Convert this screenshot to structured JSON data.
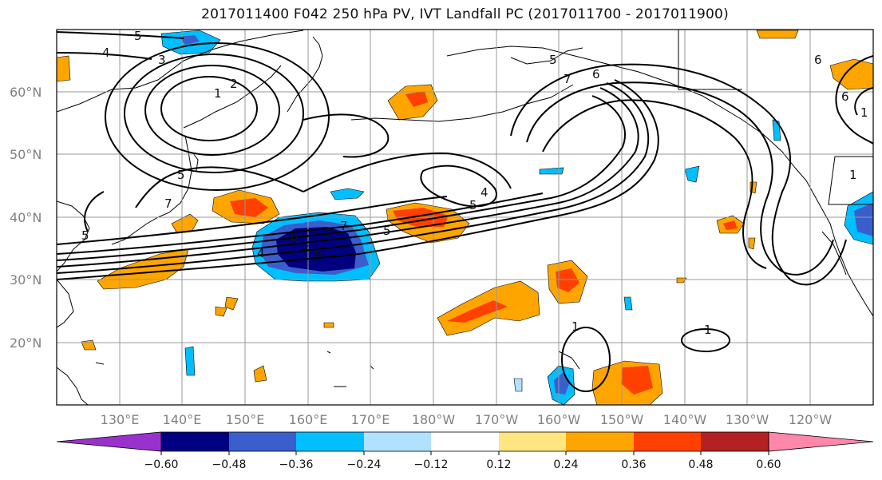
{
  "title": "2017011400 F042 250 hPa PV, IVT Landfall PC (2017011700 - 2017011900)",
  "lat_labels": [
    "60°N",
    "50°N",
    "40°N",
    "30°N",
    "20°N"
  ],
  "lon_labels": [
    "130°E",
    "140°E",
    "150°E",
    "160°E",
    "170°E",
    "180°W",
    "170°W",
    "160°W",
    "150°W",
    "140°W",
    "130°W",
    "120°W"
  ],
  "colorbar": {
    "ticks": [
      "−0.60",
      "−0.48",
      "−0.36",
      "−0.24",
      "−0.12",
      "0.12",
      "0.24",
      "0.36",
      "0.48",
      "0.60"
    ],
    "colors": [
      "#9932cc",
      "#000080",
      "#3a5fcd",
      "#00bfff",
      "#b0e2ff",
      "#ffffff",
      "#ffe680",
      "#ffa500",
      "#ff4000",
      "#b22222",
      "#ff88aa"
    ]
  },
  "contour_labels": [
    "5",
    "4",
    "3",
    "2",
    "1",
    "5",
    "7",
    "5",
    "7",
    "6",
    "7",
    "6",
    "4",
    "5",
    "7",
    "5",
    "6",
    "4",
    "5",
    "1",
    "1",
    "1",
    "6",
    "1",
    "6",
    "1"
  ]
}
